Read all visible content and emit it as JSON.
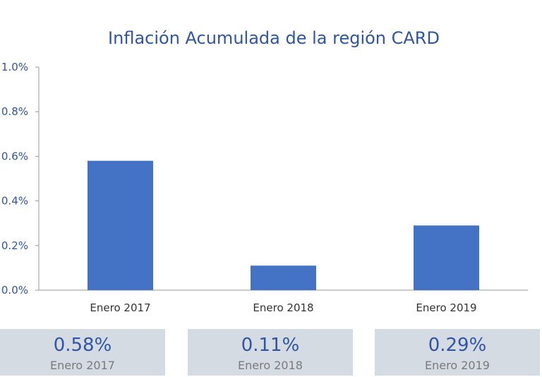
{
  "chart_data": {
    "type": "bar",
    "title": "Inflación Acumulada de la región CARD",
    "categories": [
      "Enero 2017",
      "Enero 2018",
      "Enero 2019"
    ],
    "values": [
      0.58,
      0.11,
      0.29
    ],
    "ylim": [
      0,
      1.0
    ],
    "yticks": [
      "0.0%",
      "0.2%",
      "0.4%",
      "0.6%",
      "0.8%",
      "1.0%"
    ],
    "xlabel": "",
    "ylabel": "",
    "grid": false,
    "bar_color": "#4472c4"
  },
  "cards": [
    {
      "value": "0.58%",
      "label": "Enero 2017"
    },
    {
      "value": "0.11%",
      "label": "Enero 2018"
    },
    {
      "value": "0.29%",
      "label": "Enero 2019"
    }
  ],
  "colors": {
    "title": "#2f55a4",
    "card_bg": "#d5dbe3"
  }
}
